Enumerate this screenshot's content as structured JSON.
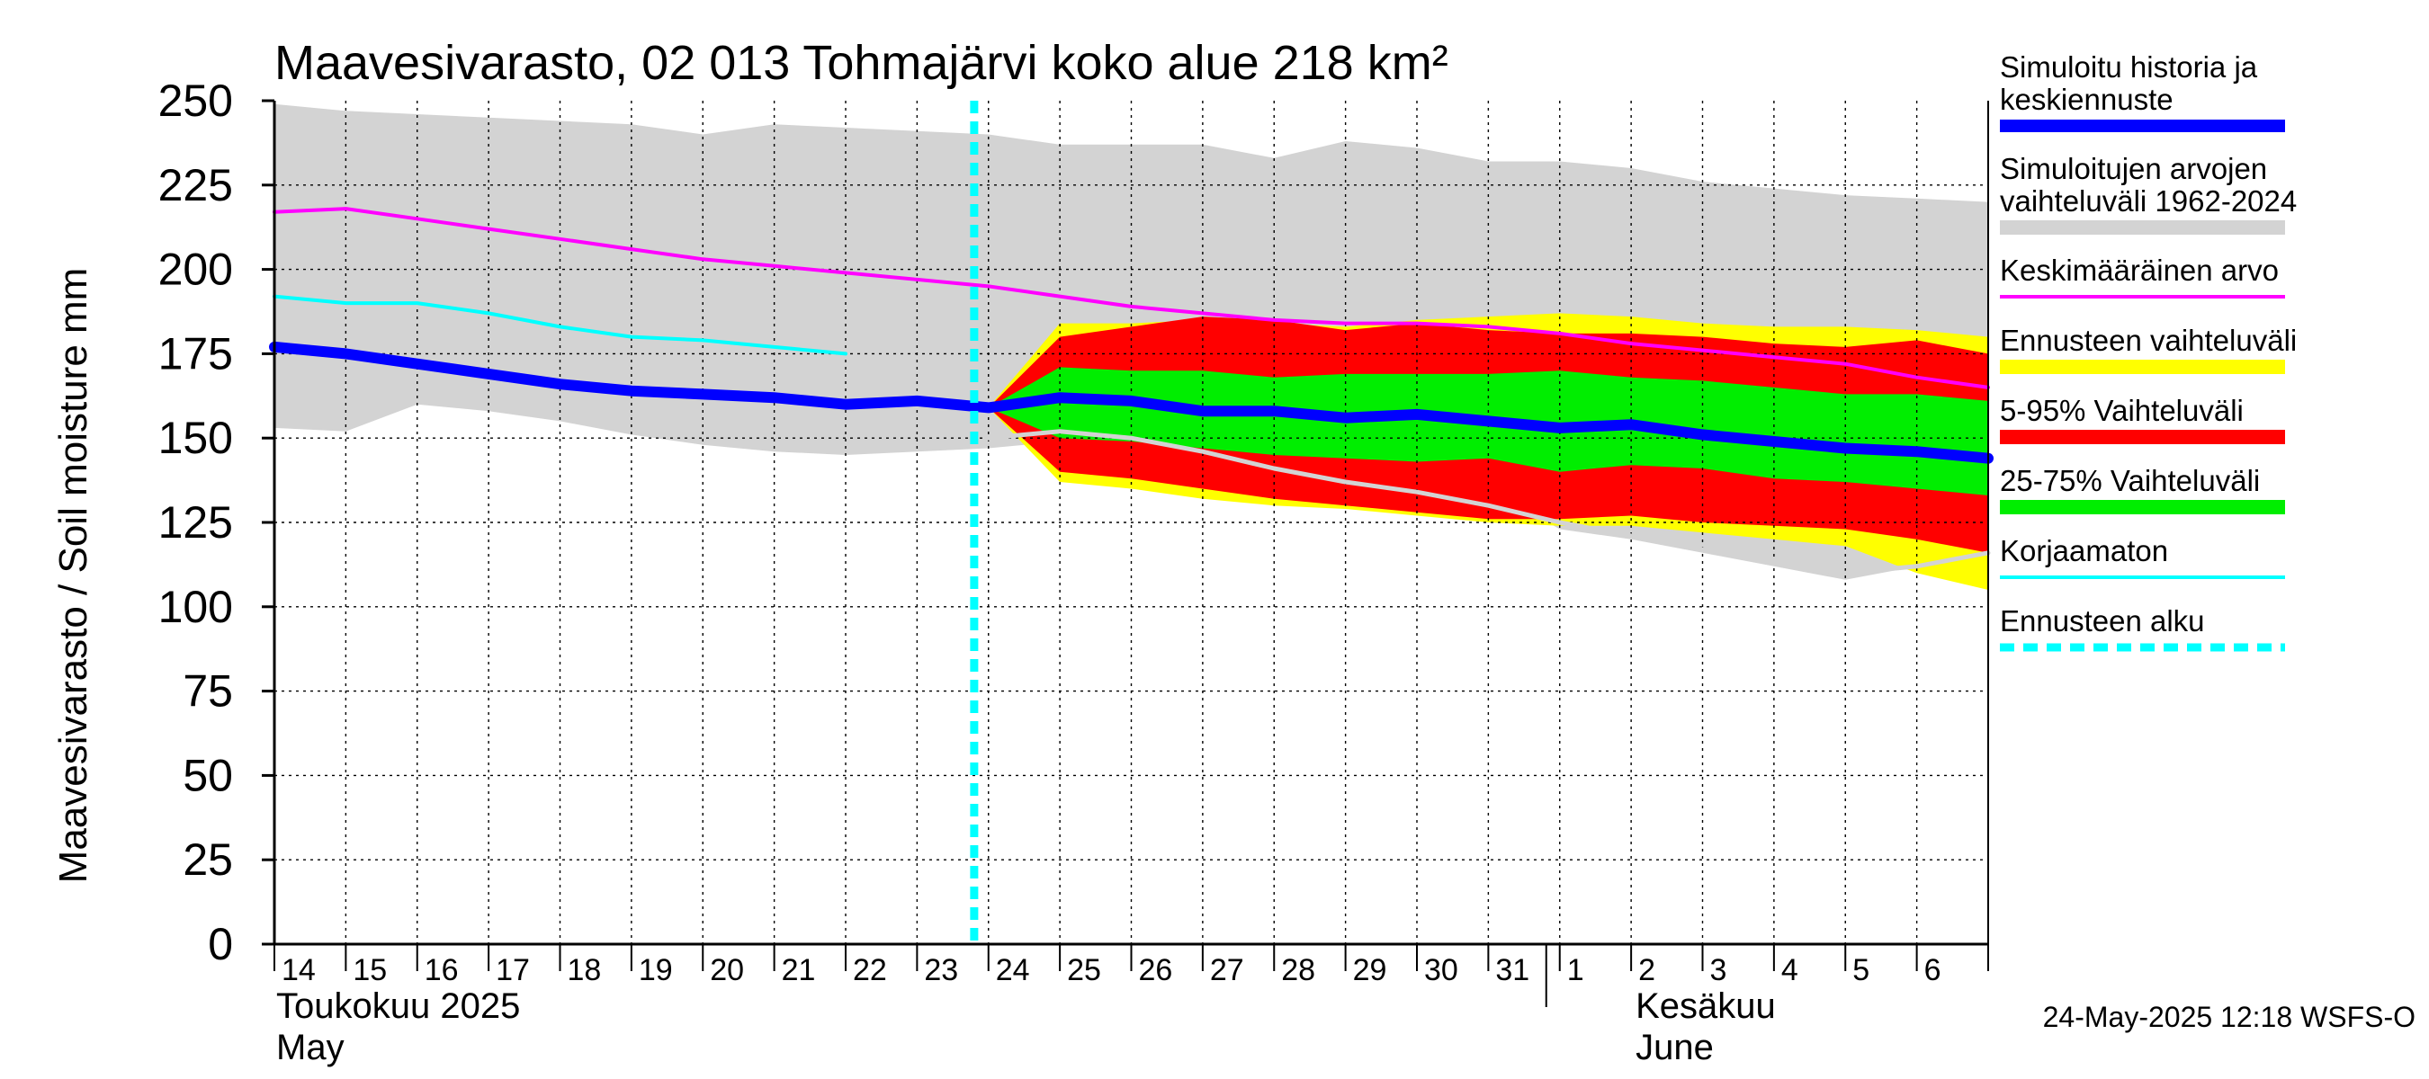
{
  "chart_data": {
    "type": "area",
    "title": "Maavesivarasto, 02 013 Tohmajärvi koko alue 218 km²",
    "ylabel": "Maavesivarasto / Soil moisture   mm",
    "ylim": [
      0,
      250
    ],
    "y_ticks": [
      0,
      25,
      50,
      75,
      100,
      125,
      150,
      175,
      200,
      225,
      250
    ],
    "x_start": "2025-05-14",
    "x_end": "2025-06-07",
    "x_tick_labels": [
      "14",
      "15",
      "16",
      "17",
      "18",
      "19",
      "20",
      "21",
      "22",
      "23",
      "24",
      "25",
      "26",
      "27",
      "28",
      "29",
      "30",
      "31",
      "1",
      "2",
      "3",
      "4",
      "5",
      "6"
    ],
    "months": [
      {
        "fi": "Toukokuu  2025",
        "en": "May"
      },
      {
        "fi": "Kesäkuu",
        "en": "June"
      }
    ],
    "forecast_start": "2025-05-24",
    "grid": true,
    "legend_position": "right",
    "footer": "24-May-2025 12:18 WSFS-O",
    "series": {
      "hist_range": {
        "name": "Simuloitujen arvojen vaihteluväli 1962-2024",
        "color": "#d3d3d3",
        "x": [
          14,
          15,
          16,
          17,
          18,
          19,
          20,
          21,
          22,
          23,
          24,
          25,
          26,
          27,
          28,
          29,
          30,
          31,
          32,
          33,
          34,
          35,
          36,
          37,
          38
        ],
        "upper": [
          249,
          247,
          246,
          245,
          244,
          243,
          240,
          243,
          242,
          241,
          240,
          237,
          237,
          237,
          233,
          238,
          236,
          232,
          232,
          230,
          226,
          224,
          222,
          221,
          220
        ],
        "lower": [
          153,
          152,
          160,
          158,
          155,
          151,
          148,
          146,
          145,
          146,
          147,
          149,
          149,
          147,
          146,
          145,
          143,
          135,
          123,
          120,
          116,
          112,
          108,
          112,
          116
        ]
      },
      "mean": {
        "name": "Keskimääräinen arvo",
        "color": "#ff00ff",
        "x": [
          14,
          15,
          16,
          17,
          18,
          19,
          20,
          21,
          22,
          23,
          24,
          25,
          26,
          27,
          28,
          29,
          30,
          31,
          32,
          33,
          34,
          35,
          36,
          37,
          38
        ],
        "values": [
          217,
          218,
          215,
          212,
          209,
          206,
          203,
          201,
          199,
          197,
          195,
          192,
          189,
          187,
          185,
          184,
          184,
          183,
          181,
          178,
          176,
          174,
          172,
          168,
          165
        ]
      },
      "uncorrected": {
        "name": "Korjaamaton",
        "color": "#00ffff",
        "x": [
          14,
          15,
          16,
          17,
          18,
          19,
          20,
          21,
          22
        ],
        "values": [
          192,
          190,
          190,
          187,
          183,
          180,
          179,
          177,
          175
        ]
      },
      "forecast_full": {
        "name": "Ennusteen vaihteluväli",
        "color": "#ffff00",
        "x": [
          24,
          25,
          26,
          27,
          28,
          29,
          30,
          31,
          32,
          33,
          34,
          35,
          36,
          37,
          38
        ],
        "upper": [
          159,
          184,
          184,
          185,
          184,
          183,
          185,
          186,
          187,
          186,
          184,
          183,
          183,
          182,
          180
        ],
        "lower": [
          159,
          137,
          135,
          132,
          130,
          129,
          127,
          125,
          124,
          124,
          122,
          120,
          118,
          110,
          105
        ]
      },
      "p5_95": {
        "name": "5-95% Vaihteluväli",
        "color": "#ff0000",
        "x": [
          24,
          25,
          26,
          27,
          28,
          29,
          30,
          31,
          32,
          33,
          34,
          35,
          36,
          37,
          38
        ],
        "upper": [
          159,
          180,
          183,
          186,
          185,
          182,
          184,
          182,
          181,
          181,
          180,
          178,
          177,
          179,
          175
        ],
        "lower": [
          159,
          140,
          138,
          135,
          132,
          130,
          128,
          126,
          126,
          127,
          125,
          124,
          123,
          120,
          116
        ]
      },
      "p25_75": {
        "name": "25-75% Vaihteluväli",
        "color": "#00ee00",
        "x": [
          24,
          25,
          26,
          27,
          28,
          29,
          30,
          31,
          32,
          33,
          34,
          35,
          36,
          37,
          38
        ],
        "upper": [
          159,
          171,
          170,
          170,
          168,
          169,
          169,
          169,
          170,
          168,
          167,
          165,
          163,
          163,
          161
        ],
        "lower": [
          159,
          150,
          149,
          147,
          145,
          144,
          143,
          144,
          140,
          142,
          141,
          138,
          137,
          135,
          133
        ]
      },
      "uncorrected_forecast": {
        "name": "",
        "color": "#d3d3d3",
        "x": [
          24,
          25,
          26,
          27,
          28,
          29,
          30,
          31,
          32,
          33,
          34,
          35,
          36,
          37,
          38
        ],
        "values": [
          150,
          152,
          150,
          146,
          141,
          137,
          134,
          130,
          125,
          121,
          117,
          113,
          110,
          112,
          116
        ]
      },
      "main": {
        "name": "Simuloitu historia ja keskiennuste",
        "color": "#0000ff",
        "x": [
          14,
          15,
          16,
          17,
          18,
          19,
          20,
          21,
          22,
          23,
          24,
          25,
          26,
          27,
          28,
          29,
          30,
          31,
          32,
          33,
          34,
          35,
          36,
          37,
          38
        ],
        "values": [
          177,
          175,
          172,
          169,
          166,
          164,
          163,
          162,
          160,
          161,
          159,
          162,
          161,
          158,
          158,
          156,
          157,
          155,
          153,
          154,
          151,
          149,
          147,
          146,
          144
        ]
      }
    },
    "legend": [
      {
        "label": "Simuloitu historia ja keskiennuste",
        "color": "#0000ff",
        "style": "thick"
      },
      {
        "label": "Simuloitujen arvojen vaihteluväli 1962-2024",
        "color": "#d3d3d3",
        "style": "band"
      },
      {
        "label": "Keskimääräinen arvo",
        "color": "#ff00ff",
        "style": "line"
      },
      {
        "label": "Ennusteen vaihteluväli",
        "color": "#ffff00",
        "style": "band"
      },
      {
        "label": "5-95% Vaihteluväli",
        "color": "#ff0000",
        "style": "band"
      },
      {
        "label": "25-75% Vaihteluväli",
        "color": "#00ee00",
        "style": "band"
      },
      {
        "label": "Korjaamaton",
        "color": "#00ffff",
        "style": "line"
      },
      {
        "label": "Ennusteen alku",
        "color": "#00ffff",
        "style": "dashed"
      }
    ]
  }
}
